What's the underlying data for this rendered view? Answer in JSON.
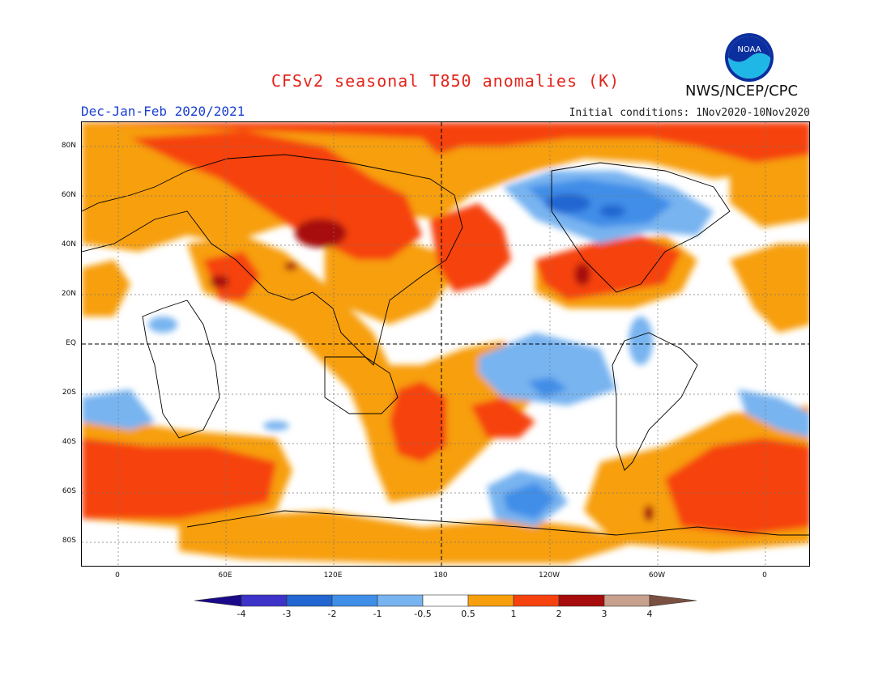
{
  "header": {
    "title": "CFSv2 seasonal T850 anomalies (K)",
    "agency": "NWS/NCEP/CPC",
    "season": "Dec-Jan-Feb 2020/2021",
    "initial_conditions": "Initial conditions: 1Nov2020-10Nov2020",
    "logo_text": "NOAA"
  },
  "map": {
    "projection": "cylindrical equidistant",
    "lat_labels": [
      "80N",
      "60N",
      "40N",
      "20N",
      "EQ",
      "20S",
      "40S",
      "60S",
      "80S"
    ],
    "lon_labels": [
      "0",
      "60E",
      "120E",
      "180",
      "120W",
      "60W",
      "0"
    ],
    "gridlines": "dotted",
    "reference_lines": [
      "equator",
      "dateline"
    ]
  },
  "colorbar": {
    "unit": "K",
    "tick_labels": [
      "-4",
      "-3",
      "-2",
      "-1",
      "-0.5",
      "0.5",
      "1",
      "2",
      "3",
      "4"
    ],
    "colors": [
      "#1a0a8a",
      "#3d33c9",
      "#2166d1",
      "#3f8ee8",
      "#78b4f0",
      "#ffffff",
      "#f79f0d",
      "#f6420f",
      "#a70c0c",
      "#c8a08e",
      "#7a5040"
    ]
  }
}
